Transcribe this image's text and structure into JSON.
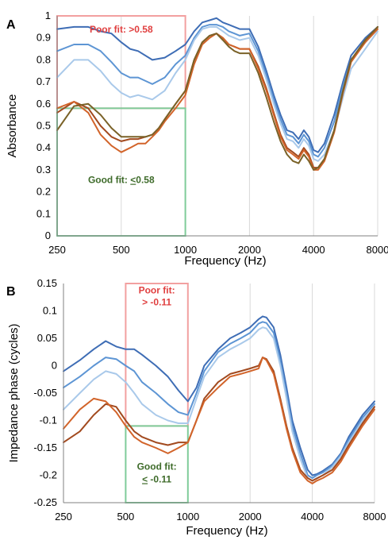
{
  "colors": {
    "series_dark_blue": "#3E6DB5",
    "series_mid_blue": "#5D95D4",
    "series_light_blue": "#A9C9EA",
    "series_dark_orange": "#A24A1F",
    "series_orange": "#D2642A",
    "series_olive": "#7A6228",
    "poor_fit": "#E04040",
    "good_fit": "#3E6B2A",
    "poor_box": "#F2A0A0",
    "good_box": "#7FCC9A"
  },
  "chart_data": [
    {
      "type": "line",
      "panel_label": "A",
      "title": "",
      "xlabel": "Frequency (Hz)",
      "ylabel": "Absorbance",
      "x_scale": "log",
      "xlim": [
        250,
        8000
      ],
      "ylim": [
        0,
        1
      ],
      "x_ticks": [
        250,
        500,
        1000,
        2000,
        4000,
        8000
      ],
      "x_tick_labels": [
        "250",
        "500",
        "1000",
        "2000",
        "4000",
        "8000"
      ],
      "y_ticks": [
        0,
        0.1,
        0.2,
        0.3,
        0.4,
        0.5,
        0.6,
        0.7,
        0.8,
        0.9,
        1
      ],
      "y_tick_labels": [
        "0",
        "0.1",
        "0.2",
        "0.3",
        "0.4",
        "0.5",
        "0.6",
        "0.7",
        "0.8",
        "0.9",
        "1"
      ],
      "grid": "vertical",
      "annotations": {
        "poor": {
          "text": "Poor fit: >0.58",
          "x_range": [
            250,
            1000
          ],
          "y_range": [
            0.58,
            1
          ]
        },
        "good": {
          "text_prefix": "Good fit: ",
          "text_underlined": "<",
          "text_suffix": "0.58",
          "x_range": [
            250,
            1000
          ],
          "y_range": [
            0,
            0.58
          ]
        }
      },
      "series": [
        {
          "color_key": "series_dark_blue",
          "x": [
            250,
            300,
            350,
            400,
            450,
            500,
            550,
            600,
            700,
            800,
            900,
            1000,
            1100,
            1200,
            1300,
            1400,
            1500,
            1600,
            1700,
            1800,
            2000,
            2200,
            2400,
            2600,
            2800,
            3000,
            3200,
            3400,
            3600,
            3800,
            4000,
            4200,
            4500,
            5000,
            5500,
            6000,
            7000,
            8000
          ],
          "y": [
            0.94,
            0.95,
            0.95,
            0.93,
            0.92,
            0.88,
            0.85,
            0.84,
            0.8,
            0.81,
            0.84,
            0.87,
            0.93,
            0.97,
            0.98,
            0.99,
            0.97,
            0.96,
            0.95,
            0.94,
            0.94,
            0.86,
            0.75,
            0.64,
            0.55,
            0.48,
            0.47,
            0.44,
            0.48,
            0.45,
            0.39,
            0.38,
            0.42,
            0.55,
            0.7,
            0.82,
            0.9,
            0.95
          ]
        },
        {
          "color_key": "series_mid_blue",
          "x": [
            250,
            300,
            350,
            400,
            450,
            500,
            550,
            600,
            700,
            800,
            900,
            1000,
            1100,
            1200,
            1300,
            1400,
            1500,
            1600,
            1700,
            1800,
            2000,
            2200,
            2400,
            2600,
            2800,
            3000,
            3200,
            3400,
            3600,
            3800,
            4000,
            4200,
            4500,
            5000,
            5500,
            6000,
            7000,
            8000
          ],
          "y": [
            0.84,
            0.87,
            0.87,
            0.84,
            0.79,
            0.74,
            0.72,
            0.72,
            0.69,
            0.72,
            0.78,
            0.82,
            0.9,
            0.95,
            0.96,
            0.96,
            0.95,
            0.93,
            0.92,
            0.91,
            0.92,
            0.84,
            0.73,
            0.62,
            0.53,
            0.46,
            0.45,
            0.42,
            0.46,
            0.43,
            0.37,
            0.36,
            0.4,
            0.52,
            0.68,
            0.8,
            0.88,
            0.94
          ]
        },
        {
          "color_key": "series_light_blue",
          "x": [
            250,
            300,
            350,
            400,
            450,
            500,
            550,
            600,
            700,
            800,
            900,
            1000,
            1100,
            1200,
            1300,
            1400,
            1500,
            1600,
            1700,
            1800,
            2000,
            2200,
            2400,
            2600,
            2800,
            3000,
            3200,
            3400,
            3600,
            3800,
            4000,
            4200,
            4500,
            5000,
            5500,
            6000,
            7000,
            8000
          ],
          "y": [
            0.72,
            0.8,
            0.8,
            0.75,
            0.69,
            0.65,
            0.63,
            0.64,
            0.62,
            0.66,
            0.74,
            0.8,
            0.89,
            0.94,
            0.95,
            0.95,
            0.93,
            0.91,
            0.9,
            0.89,
            0.9,
            0.82,
            0.71,
            0.6,
            0.51,
            0.44,
            0.43,
            0.4,
            0.44,
            0.41,
            0.35,
            0.34,
            0.37,
            0.48,
            0.63,
            0.76,
            0.85,
            0.93
          ]
        },
        {
          "color_key": "series_dark_orange",
          "x": [
            250,
            300,
            350,
            400,
            450,
            500,
            550,
            600,
            650,
            700,
            750,
            800,
            900,
            1000,
            1100,
            1200,
            1300,
            1400,
            1500,
            1600,
            1700,
            1800,
            2000,
            2200,
            2400,
            2600,
            2800,
            3000,
            3200,
            3400,
            3600,
            3800,
            4000,
            4200,
            4500,
            5000,
            5500,
            6000,
            7000,
            8000
          ],
          "y": [
            0.56,
            0.61,
            0.58,
            0.5,
            0.45,
            0.43,
            0.44,
            0.44,
            0.45,
            0.46,
            0.49,
            0.53,
            0.6,
            0.66,
            0.8,
            0.88,
            0.91,
            0.92,
            0.9,
            0.87,
            0.86,
            0.85,
            0.85,
            0.77,
            0.67,
            0.56,
            0.46,
            0.4,
            0.38,
            0.36,
            0.4,
            0.37,
            0.31,
            0.31,
            0.35,
            0.48,
            0.66,
            0.8,
            0.89,
            0.95
          ]
        },
        {
          "color_key": "series_orange",
          "x": [
            250,
            300,
            350,
            400,
            450,
            500,
            550,
            600,
            650,
            700,
            750,
            800,
            900,
            1000,
            1100,
            1200,
            1300,
            1400,
            1500,
            1600,
            1700,
            1800,
            2000,
            2200,
            2400,
            2600,
            2800,
            3000,
            3200,
            3400,
            3600,
            3800,
            4000,
            4200,
            4500,
            5000,
            5500,
            6000,
            7000,
            8000
          ],
          "y": [
            0.58,
            0.61,
            0.56,
            0.46,
            0.41,
            0.38,
            0.4,
            0.42,
            0.42,
            0.45,
            0.48,
            0.52,
            0.58,
            0.64,
            0.78,
            0.87,
            0.9,
            0.92,
            0.9,
            0.87,
            0.86,
            0.85,
            0.85,
            0.76,
            0.66,
            0.55,
            0.45,
            0.39,
            0.37,
            0.35,
            0.39,
            0.36,
            0.3,
            0.3,
            0.34,
            0.47,
            0.65,
            0.79,
            0.88,
            0.94
          ]
        },
        {
          "color_key": "series_olive",
          "x": [
            250,
            300,
            350,
            400,
            450,
            500,
            550,
            600,
            650,
            700,
            750,
            800,
            900,
            1000,
            1100,
            1200,
            1300,
            1400,
            1500,
            1600,
            1700,
            1800,
            2000,
            2200,
            2400,
            2600,
            2800,
            3000,
            3200,
            3400,
            3600,
            3800,
            4000,
            4200,
            4500,
            5000,
            5500,
            6000,
            7000,
            8000
          ],
          "y": [
            0.48,
            0.59,
            0.6,
            0.55,
            0.49,
            0.45,
            0.45,
            0.45,
            0.45,
            0.46,
            0.49,
            0.53,
            0.6,
            0.66,
            0.8,
            0.88,
            0.91,
            0.92,
            0.89,
            0.86,
            0.84,
            0.83,
            0.83,
            0.74,
            0.63,
            0.52,
            0.43,
            0.37,
            0.34,
            0.33,
            0.37,
            0.34,
            0.3,
            0.31,
            0.35,
            0.48,
            0.66,
            0.8,
            0.89,
            0.95
          ]
        }
      ]
    },
    {
      "type": "line",
      "panel_label": "B",
      "title": "",
      "xlabel": "Frequency (Hz)",
      "ylabel": "Impedance phase (cycles)",
      "x_scale": "log",
      "xlim": [
        250,
        8000
      ],
      "ylim": [
        -0.25,
        0.15
      ],
      "x_ticks": [
        250,
        500,
        1000,
        2000,
        4000,
        8000
      ],
      "x_tick_labels": [
        "250",
        "500",
        "1000",
        "2000",
        "4000",
        "8000"
      ],
      "y_ticks": [
        -0.25,
        -0.2,
        -0.15,
        -0.1,
        -0.05,
        0,
        0.05,
        0.1,
        0.15
      ],
      "y_tick_labels": [
        "-0.25",
        "-0.2",
        "-0.15",
        "-0.1",
        "-0.05",
        "0",
        "0.05",
        "0.1",
        "0.15"
      ],
      "grid": "vertical",
      "annotations": {
        "poor": {
          "text_line1": "Poor fit:",
          "text_line2": "> -0.11",
          "x_range": [
            500,
            1000
          ],
          "y_range": [
            -0.11,
            0.15
          ]
        },
        "good": {
          "text_line1": "Good fit:",
          "text_underlined": "<",
          "text_line2_suffix": " -0.11",
          "x_range": [
            500,
            1000
          ],
          "y_range": [
            -0.25,
            -0.11
          ]
        }
      },
      "series": [
        {
          "color_key": "series_dark_blue",
          "x": [
            250,
            300,
            350,
            400,
            450,
            500,
            550,
            600,
            700,
            800,
            900,
            1000,
            1100,
            1200,
            1400,
            1600,
            1800,
            2000,
            2200,
            2300,
            2400,
            2600,
            2800,
            3000,
            3200,
            3500,
            3800,
            4000,
            4200,
            4500,
            5000,
            5500,
            6000,
            7000,
            8000
          ],
          "y": [
            -0.01,
            0.01,
            0.03,
            0.045,
            0.035,
            0.03,
            0.03,
            0.02,
            0.0,
            -0.02,
            -0.045,
            -0.065,
            -0.04,
            0.0,
            0.03,
            0.05,
            0.06,
            0.07,
            0.085,
            0.09,
            0.088,
            0.07,
            0.02,
            -0.04,
            -0.1,
            -0.15,
            -0.19,
            -0.2,
            -0.198,
            -0.192,
            -0.18,
            -0.16,
            -0.13,
            -0.09,
            -0.065
          ]
        },
        {
          "color_key": "series_mid_blue",
          "x": [
            250,
            300,
            350,
            400,
            450,
            500,
            550,
            600,
            700,
            800,
            900,
            1000,
            1100,
            1200,
            1400,
            1600,
            1800,
            2000,
            2200,
            2300,
            2400,
            2600,
            2800,
            3000,
            3200,
            3500,
            3800,
            4000,
            4200,
            4500,
            5000,
            5500,
            6000,
            7000,
            8000
          ],
          "y": [
            -0.04,
            -0.02,
            0.0,
            0.015,
            0.012,
            0.0,
            -0.01,
            -0.03,
            -0.05,
            -0.07,
            -0.085,
            -0.09,
            -0.05,
            -0.01,
            0.025,
            0.04,
            0.05,
            0.06,
            0.077,
            0.08,
            0.078,
            0.06,
            0.01,
            -0.05,
            -0.11,
            -0.16,
            -0.2,
            -0.205,
            -0.2,
            -0.195,
            -0.182,
            -0.162,
            -0.135,
            -0.095,
            -0.07
          ]
        },
        {
          "color_key": "series_light_blue",
          "x": [
            250,
            300,
            350,
            400,
            450,
            500,
            550,
            600,
            700,
            800,
            900,
            1000,
            1100,
            1200,
            1400,
            1600,
            1800,
            2000,
            2200,
            2300,
            2400,
            2600,
            2800,
            3000,
            3200,
            3500,
            3800,
            4000,
            4200,
            4500,
            5000,
            5500,
            6000,
            7000,
            8000
          ],
          "y": [
            -0.08,
            -0.05,
            -0.025,
            -0.01,
            -0.015,
            -0.03,
            -0.05,
            -0.07,
            -0.09,
            -0.1,
            -0.105,
            -0.105,
            -0.06,
            -0.02,
            0.015,
            0.03,
            0.04,
            0.05,
            0.066,
            0.07,
            0.068,
            0.05,
            0.0,
            -0.06,
            -0.12,
            -0.17,
            -0.205,
            -0.21,
            -0.205,
            -0.2,
            -0.185,
            -0.165,
            -0.14,
            -0.1,
            -0.075
          ]
        },
        {
          "color_key": "series_dark_orange",
          "x": [
            250,
            300,
            350,
            400,
            450,
            500,
            550,
            600,
            700,
            800,
            900,
            1000,
            1100,
            1200,
            1400,
            1600,
            1800,
            2000,
            2200,
            2300,
            2400,
            2600,
            2800,
            3000,
            3200,
            3500,
            3800,
            4000,
            4200,
            4500,
            5000,
            5500,
            6000,
            7000,
            8000
          ],
          "y": [
            -0.14,
            -0.12,
            -0.09,
            -0.07,
            -0.075,
            -0.1,
            -0.12,
            -0.13,
            -0.14,
            -0.145,
            -0.14,
            -0.14,
            -0.1,
            -0.06,
            -0.03,
            -0.015,
            -0.01,
            -0.005,
            0.0,
            0.015,
            0.012,
            -0.01,
            -0.06,
            -0.11,
            -0.15,
            -0.19,
            -0.205,
            -0.21,
            -0.206,
            -0.2,
            -0.19,
            -0.17,
            -0.145,
            -0.105,
            -0.075
          ]
        },
        {
          "color_key": "series_orange",
          "x": [
            250,
            300,
            350,
            400,
            450,
            500,
            550,
            600,
            700,
            800,
            900,
            1000,
            1100,
            1200,
            1400,
            1600,
            1800,
            2000,
            2200,
            2300,
            2400,
            2600,
            2800,
            3000,
            3200,
            3500,
            3800,
            4000,
            4200,
            4500,
            5000,
            5500,
            6000,
            7000,
            8000
          ],
          "y": [
            -0.115,
            -0.08,
            -0.06,
            -0.065,
            -0.085,
            -0.11,
            -0.13,
            -0.14,
            -0.15,
            -0.16,
            -0.15,
            -0.14,
            -0.1,
            -0.065,
            -0.04,
            -0.02,
            -0.015,
            -0.01,
            -0.005,
            0.015,
            0.01,
            -0.015,
            -0.065,
            -0.115,
            -0.155,
            -0.195,
            -0.21,
            -0.215,
            -0.21,
            -0.205,
            -0.195,
            -0.175,
            -0.15,
            -0.11,
            -0.08
          ]
        }
      ]
    }
  ]
}
